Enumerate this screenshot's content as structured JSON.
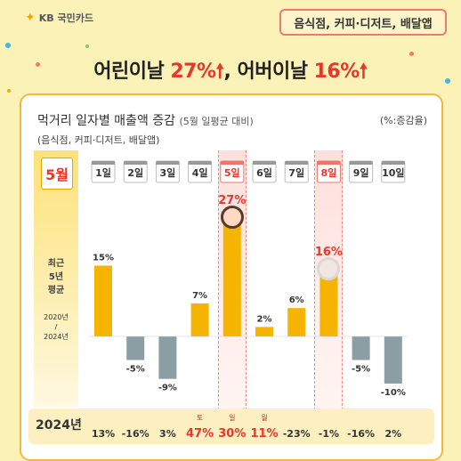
{
  "brand": {
    "logo_mark": "✦",
    "name": "KB 국민카드"
  },
  "tag": "음식점, 커피·디저트, 배달앱",
  "headline": {
    "part1": "어린이날 ",
    "part1_value": "27%",
    "part1_arrow": "🠕",
    "comma": ", 어버이날 ",
    "part2_value": "16%",
    "part2_arrow": "🠕"
  },
  "card": {
    "title": "먹거리 일자별 매출액 증감",
    "title_note": "(5월 일평균 대비)",
    "subtitle": "(음식점, 커피·디저트, 배달앱)",
    "unit": "(%:증감율)",
    "month": "5월",
    "side_label": [
      "최근",
      "5년",
      "평균"
    ],
    "side_range": [
      "2020년",
      "/",
      "2024년"
    ],
    "bottom_year": "2024년"
  },
  "colors": {
    "positive": "#f5b400",
    "negative": "#8a9ea4",
    "highlight": "#e8362a",
    "accent_border": "#f3b842"
  },
  "chart_data": {
    "type": "bar",
    "categories": [
      "1일",
      "2일",
      "3일",
      "4일",
      "5일",
      "6일",
      "7일",
      "8일",
      "9일",
      "10일"
    ],
    "series": [
      {
        "values": [
          15,
          -5,
          -9,
          7,
          27,
          2,
          6,
          16,
          -5,
          -10
        ]
      }
    ],
    "value_labels": [
      "15%",
      "-5%",
      "-9%",
      "7%",
      "27%",
      "2%",
      "6%",
      "16%",
      "-5%",
      "-10%"
    ],
    "highlighted_categories": [
      "5일",
      "8일"
    ],
    "bottom_row": {
      "values": [
        "13%",
        "-16%",
        "3%",
        "47%",
        "30%",
        "11%",
        "-23%",
        "-1%",
        "-16%",
        "2%"
      ],
      "day_labels": [
        "",
        "",
        "",
        "토",
        "일",
        "월",
        "",
        "",
        "",
        ""
      ],
      "highlighted": [
        false,
        false,
        false,
        true,
        true,
        true,
        false,
        false,
        false,
        false
      ]
    },
    "ylim": [
      -12,
      30
    ]
  }
}
